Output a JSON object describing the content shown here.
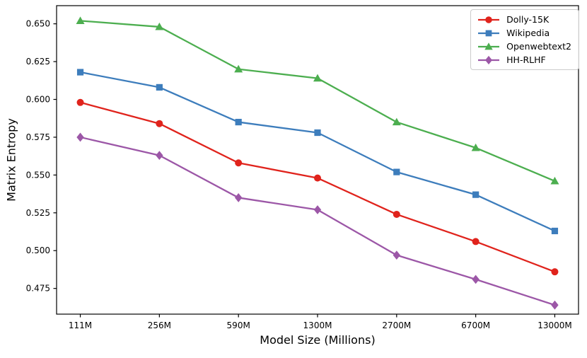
{
  "chart_data": {
    "type": "line",
    "title": "",
    "xlabel": "Model Size (Millions)",
    "ylabel": "Matrix Entropy",
    "categories": [
      "111M",
      "256M",
      "590M",
      "1300M",
      "2700M",
      "6700M",
      "13000M"
    ],
    "series": [
      {
        "name": "Dolly-15K",
        "color": "#e0231c",
        "marker": "circle",
        "values": [
          0.598,
          0.584,
          0.558,
          0.548,
          0.524,
          0.506,
          0.486
        ]
      },
      {
        "name": "Wikipedia",
        "color": "#3d7dbc",
        "marker": "square",
        "values": [
          0.618,
          0.608,
          0.585,
          0.578,
          0.552,
          0.537,
          0.513
        ]
      },
      {
        "name": "Openwebtext2",
        "color": "#4cae4f",
        "marker": "triangle",
        "values": [
          0.652,
          0.648,
          0.62,
          0.614,
          0.585,
          0.568,
          0.546
        ]
      },
      {
        "name": "HH-RLHF",
        "color": "#9c57a7",
        "marker": "diamond",
        "values": [
          0.575,
          0.563,
          0.535,
          0.527,
          0.497,
          0.481,
          0.464
        ]
      }
    ],
    "yticks": [
      0.475,
      0.5,
      0.525,
      0.55,
      0.575,
      0.6,
      0.625,
      0.65
    ],
    "ylim": [
      0.458,
      0.662
    ],
    "x_margin_frac": 0.05,
    "grid": false,
    "legend_position": "upper right",
    "axis_color": "#000000",
    "text_color": "#000000"
  }
}
